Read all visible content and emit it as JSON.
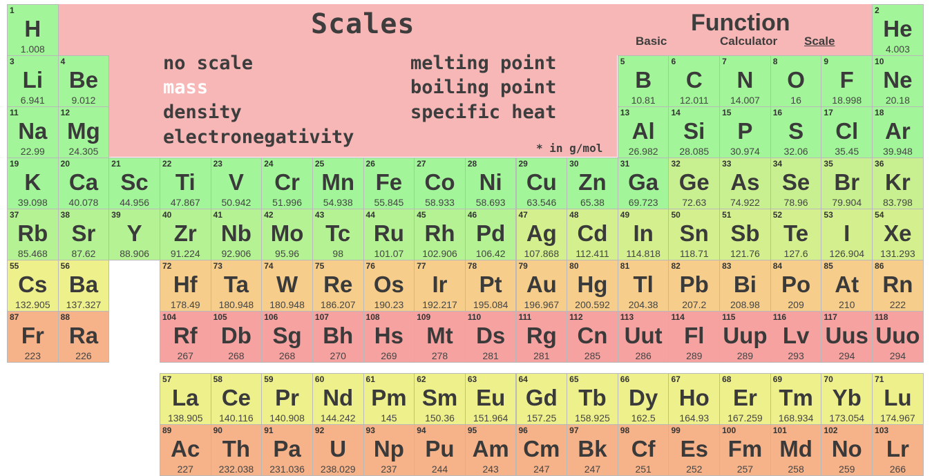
{
  "scales_panel": {
    "title": "Scales",
    "options": [
      "no scale",
      "mass",
      "density",
      "electronegativity",
      "melting point",
      "boiling point",
      "specific heat"
    ],
    "active_option": "mass",
    "note": "* in g/mol"
  },
  "function_panel": {
    "title": "Function",
    "tabs": [
      "Basic",
      "Calculator",
      "Scale"
    ],
    "active_tab": "Scale"
  },
  "colors": {
    "panel": "#f8b7b7",
    "green": "#a2f598",
    "yellow_green": "#c8f090",
    "yellow": "#eef08c",
    "orange": "#f6cd8a",
    "salmon": "#f6b38a",
    "red": "#f5a2a0"
  },
  "elements": [
    {
      "n": "1",
      "s": "H",
      "m": "1.008"
    },
    {
      "n": "2",
      "s": "He",
      "m": "4.003"
    },
    {
      "n": "3",
      "s": "Li",
      "m": "6.941"
    },
    {
      "n": "4",
      "s": "Be",
      "m": "9.012"
    },
    {
      "n": "5",
      "s": "B",
      "m": "10.81"
    },
    {
      "n": "6",
      "s": "C",
      "m": "12.011"
    },
    {
      "n": "7",
      "s": "N",
      "m": "14.007"
    },
    {
      "n": "8",
      "s": "O",
      "m": "16"
    },
    {
      "n": "9",
      "s": "F",
      "m": "18.998"
    },
    {
      "n": "10",
      "s": "Ne",
      "m": "20.18"
    },
    {
      "n": "11",
      "s": "Na",
      "m": "22.99"
    },
    {
      "n": "12",
      "s": "Mg",
      "m": "24.305"
    },
    {
      "n": "13",
      "s": "Al",
      "m": "26.982"
    },
    {
      "n": "14",
      "s": "Si",
      "m": "28.085"
    },
    {
      "n": "15",
      "s": "P",
      "m": "30.974"
    },
    {
      "n": "16",
      "s": "S",
      "m": "32.06"
    },
    {
      "n": "17",
      "s": "Cl",
      "m": "35.45"
    },
    {
      "n": "18",
      "s": "Ar",
      "m": "39.948"
    },
    {
      "n": "19",
      "s": "K",
      "m": "39.098"
    },
    {
      "n": "20",
      "s": "Ca",
      "m": "40.078"
    },
    {
      "n": "21",
      "s": "Sc",
      "m": "44.956"
    },
    {
      "n": "22",
      "s": "Ti",
      "m": "47.867"
    },
    {
      "n": "23",
      "s": "V",
      "m": "50.942"
    },
    {
      "n": "24",
      "s": "Cr",
      "m": "51.996"
    },
    {
      "n": "25",
      "s": "Mn",
      "m": "54.938"
    },
    {
      "n": "26",
      "s": "Fe",
      "m": "55.845"
    },
    {
      "n": "27",
      "s": "Co",
      "m": "58.933"
    },
    {
      "n": "28",
      "s": "Ni",
      "m": "58.693"
    },
    {
      "n": "29",
      "s": "Cu",
      "m": "63.546"
    },
    {
      "n": "30",
      "s": "Zn",
      "m": "65.38"
    },
    {
      "n": "31",
      "s": "Ga",
      "m": "69.723"
    },
    {
      "n": "32",
      "s": "Ge",
      "m": "72.63"
    },
    {
      "n": "33",
      "s": "As",
      "m": "74.922"
    },
    {
      "n": "34",
      "s": "Se",
      "m": "78.96"
    },
    {
      "n": "35",
      "s": "Br",
      "m": "79.904"
    },
    {
      "n": "36",
      "s": "Kr",
      "m": "83.798"
    },
    {
      "n": "37",
      "s": "Rb",
      "m": "85.468"
    },
    {
      "n": "38",
      "s": "Sr",
      "m": "87.62"
    },
    {
      "n": "39",
      "s": "Y",
      "m": "88.906"
    },
    {
      "n": "40",
      "s": "Zr",
      "m": "91.224"
    },
    {
      "n": "41",
      "s": "Nb",
      "m": "92.906"
    },
    {
      "n": "42",
      "s": "Mo",
      "m": "95.96"
    },
    {
      "n": "43",
      "s": "Tc",
      "m": "98"
    },
    {
      "n": "44",
      "s": "Ru",
      "m": "101.07"
    },
    {
      "n": "45",
      "s": "Rh",
      "m": "102.906"
    },
    {
      "n": "46",
      "s": "Pd",
      "m": "106.42"
    },
    {
      "n": "47",
      "s": "Ag",
      "m": "107.868"
    },
    {
      "n": "48",
      "s": "Cd",
      "m": "112.411"
    },
    {
      "n": "49",
      "s": "In",
      "m": "114.818"
    },
    {
      "n": "50",
      "s": "Sn",
      "m": "118.71"
    },
    {
      "n": "51",
      "s": "Sb",
      "m": "121.76"
    },
    {
      "n": "52",
      "s": "Te",
      "m": "127.6"
    },
    {
      "n": "53",
      "s": "I",
      "m": "126.904"
    },
    {
      "n": "54",
      "s": "Xe",
      "m": "131.293"
    },
    {
      "n": "55",
      "s": "Cs",
      "m": "132.905"
    },
    {
      "n": "56",
      "s": "Ba",
      "m": "137.327"
    },
    {
      "n": "72",
      "s": "Hf",
      "m": "178.49"
    },
    {
      "n": "73",
      "s": "Ta",
      "m": "180.948"
    },
    {
      "n": "74",
      "s": "W",
      "m": "180.948"
    },
    {
      "n": "75",
      "s": "Re",
      "m": "186.207"
    },
    {
      "n": "76",
      "s": "Os",
      "m": "190.23"
    },
    {
      "n": "77",
      "s": "Ir",
      "m": "192.217"
    },
    {
      "n": "78",
      "s": "Pt",
      "m": "195.084"
    },
    {
      "n": "79",
      "s": "Au",
      "m": "196.967"
    },
    {
      "n": "80",
      "s": "Hg",
      "m": "200.592"
    },
    {
      "n": "81",
      "s": "Tl",
      "m": "204.38"
    },
    {
      "n": "82",
      "s": "Pb",
      "m": "207.2"
    },
    {
      "n": "83",
      "s": "Bi",
      "m": "208.98"
    },
    {
      "n": "84",
      "s": "Po",
      "m": "209"
    },
    {
      "n": "85",
      "s": "At",
      "m": "210"
    },
    {
      "n": "86",
      "s": "Rn",
      "m": "222"
    },
    {
      "n": "87",
      "s": "Fr",
      "m": "223"
    },
    {
      "n": "88",
      "s": "Ra",
      "m": "226"
    },
    {
      "n": "104",
      "s": "Rf",
      "m": "267"
    },
    {
      "n": "105",
      "s": "Db",
      "m": "268"
    },
    {
      "n": "106",
      "s": "Sg",
      "m": "268"
    },
    {
      "n": "107",
      "s": "Bh",
      "m": "270"
    },
    {
      "n": "108",
      "s": "Hs",
      "m": "269"
    },
    {
      "n": "109",
      "s": "Mt",
      "m": "278"
    },
    {
      "n": "110",
      "s": "Ds",
      "m": "281"
    },
    {
      "n": "111",
      "s": "Rg",
      "m": "281"
    },
    {
      "n": "112",
      "s": "Cn",
      "m": "285"
    },
    {
      "n": "113",
      "s": "Uut",
      "m": "286"
    },
    {
      "n": "114",
      "s": "Fl",
      "m": "289"
    },
    {
      "n": "115",
      "s": "Uup",
      "m": "289"
    },
    {
      "n": "116",
      "s": "Lv",
      "m": "293"
    },
    {
      "n": "117",
      "s": "Uus",
      "m": "294"
    },
    {
      "n": "118",
      "s": "Uuo",
      "m": "294"
    },
    {
      "n": "57",
      "s": "La",
      "m": "138.905"
    },
    {
      "n": "58",
      "s": "Ce",
      "m": "140.116"
    },
    {
      "n": "59",
      "s": "Pr",
      "m": "140.908"
    },
    {
      "n": "60",
      "s": "Nd",
      "m": "144.242"
    },
    {
      "n": "61",
      "s": "Pm",
      "m": "145"
    },
    {
      "n": "62",
      "s": "Sm",
      "m": "150.36"
    },
    {
      "n": "63",
      "s": "Eu",
      "m": "151.964"
    },
    {
      "n": "64",
      "s": "Gd",
      "m": "157.25"
    },
    {
      "n": "65",
      "s": "Tb",
      "m": "158.925"
    },
    {
      "n": "66",
      "s": "Dy",
      "m": "162.5"
    },
    {
      "n": "67",
      "s": "Ho",
      "m": "164.93"
    },
    {
      "n": "68",
      "s": "Er",
      "m": "167.259"
    },
    {
      "n": "69",
      "s": "Tm",
      "m": "168.934"
    },
    {
      "n": "70",
      "s": "Yb",
      "m": "173.054"
    },
    {
      "n": "71",
      "s": "Lu",
      "m": "174.967"
    },
    {
      "n": "89",
      "s": "Ac",
      "m": "227"
    },
    {
      "n": "90",
      "s": "Th",
      "m": "232.038"
    },
    {
      "n": "91",
      "s": "Pa",
      "m": "231.036"
    },
    {
      "n": "92",
      "s": "U",
      "m": "238.029"
    },
    {
      "n": "93",
      "s": "Np",
      "m": "237"
    },
    {
      "n": "94",
      "s": "Pu",
      "m": "244"
    },
    {
      "n": "95",
      "s": "Am",
      "m": "243"
    },
    {
      "n": "96",
      "s": "Cm",
      "m": "247"
    },
    {
      "n": "97",
      "s": "Bk",
      "m": "247"
    },
    {
      "n": "98",
      "s": "Cf",
      "m": "251"
    },
    {
      "n": "99",
      "s": "Es",
      "m": "252"
    },
    {
      "n": "100",
      "s": "Fm",
      "m": "257"
    },
    {
      "n": "101",
      "s": "Md",
      "m": "258"
    },
    {
      "n": "102",
      "s": "No",
      "m": "259"
    },
    {
      "n": "103",
      "s": "Lr",
      "m": "266"
    }
  ]
}
